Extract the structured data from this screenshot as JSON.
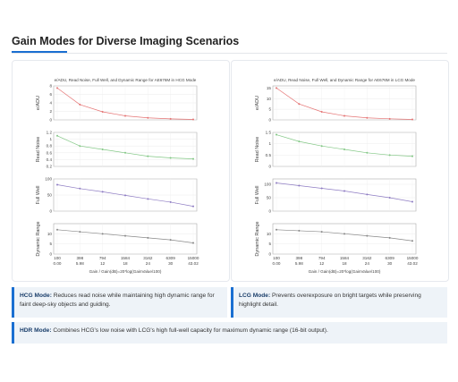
{
  "header": {
    "title": "Gain Modes for Diverse Imaging Scenarios"
  },
  "panels": [
    {
      "chart": {
        "type": "line",
        "title": "e/ADU, Read Noise, Full Well, and Dynamic Range for AE676M in HCG Mode",
        "x_gain": [
          "100",
          "398",
          "794",
          "1584",
          "3162",
          "6309",
          "15000"
        ],
        "x_db": [
          "0.00",
          "5.98",
          "12",
          "18",
          "24",
          "30",
          "43.02"
        ],
        "x_label": "Gain / Gain(dB)=20*log(GainValue/100)",
        "subplots": [
          {
            "y_label": "e/ADU",
            "color": "#e57373",
            "ylim": [
              0,
              8
            ],
            "yticks": [
              0,
              2,
              4,
              6,
              8
            ],
            "values": [
              7.5,
              3.6,
              1.9,
              0.95,
              0.48,
              0.24,
              0.1
            ]
          },
          {
            "y_label": "Read Noise",
            "color": "#81c784",
            "ylim": [
              0.2,
              1.2
            ],
            "yticks": [
              0.2,
              0.4,
              0.6,
              0.8,
              1,
              1.2
            ],
            "values": [
              1.1,
              0.8,
              0.7,
              0.6,
              0.5,
              0.45,
              0.42
            ]
          },
          {
            "y_label": "Full Well",
            "color": "#8e7cc3",
            "ylim": [
              0,
              100
            ],
            "yticks": [
              0,
              50,
              100
            ],
            "values": [
              82,
              70,
              60,
              49,
              38,
              28,
              15
            ]
          },
          {
            "y_label": "Dynamic Range",
            "color": "#888888",
            "ylim": [
              0,
              15
            ],
            "yticks": [
              0,
              5,
              10
            ],
            "values": [
              12,
              11,
              10,
              9,
              8,
              7,
              5.5
            ]
          }
        ]
      }
    },
    {
      "chart": {
        "type": "line",
        "title": "e/ADU, Read Noise, Full Well, and Dynamic Range for AE676M in LCG Mode",
        "x_gain": [
          "100",
          "398",
          "794",
          "1584",
          "3162",
          "6309",
          "15000"
        ],
        "x_db": [
          "0.00",
          "5.98",
          "12",
          "18",
          "24",
          "30",
          "43.02"
        ],
        "x_label": "Gain / Gain(dB)=20*log(GainValue/100)",
        "subplots": [
          {
            "y_label": "e/ADU",
            "color": "#e57373",
            "ylim": [
              0,
              16
            ],
            "yticks": [
              0,
              5,
              10,
              15
            ],
            "values": [
              15,
              7.5,
              3.8,
              1.9,
              0.95,
              0.5,
              0.2
            ]
          },
          {
            "y_label": "Read Noise",
            "color": "#81c784",
            "ylim": [
              0,
              1.5
            ],
            "yticks": [
              0,
              0.5,
              1,
              1.5
            ],
            "values": [
              1.4,
              1.1,
              0.9,
              0.75,
              0.6,
              0.5,
              0.45
            ]
          },
          {
            "y_label": "Full Well",
            "color": "#8e7cc3",
            "ylim": [
              0,
              120
            ],
            "yticks": [
              0,
              50,
              100
            ],
            "values": [
              105,
              95,
              85,
              75,
              62,
              50,
              35
            ]
          },
          {
            "y_label": "Dynamic Range",
            "color": "#888888",
            "ylim": [
              0,
              15
            ],
            "yticks": [
              0,
              5,
              10
            ],
            "values": [
              12,
              11.5,
              11,
              10,
              9,
              8,
              6.5
            ]
          }
        ]
      }
    }
  ],
  "notes": [
    {
      "term": "HCG Mode:",
      "text": "Reduces read noise while maintaining high dynamic range for faint deep-sky objects and guiding."
    },
    {
      "term": "LCG Mode:",
      "text": "Prevents overexposure on bright targets while preserving highlight detail."
    },
    {
      "term": "HDR Mode:",
      "text": "Combines HCG's low noise with LCG's high full-well capacity for maximum dynamic range (16-bit output)."
    }
  ]
}
